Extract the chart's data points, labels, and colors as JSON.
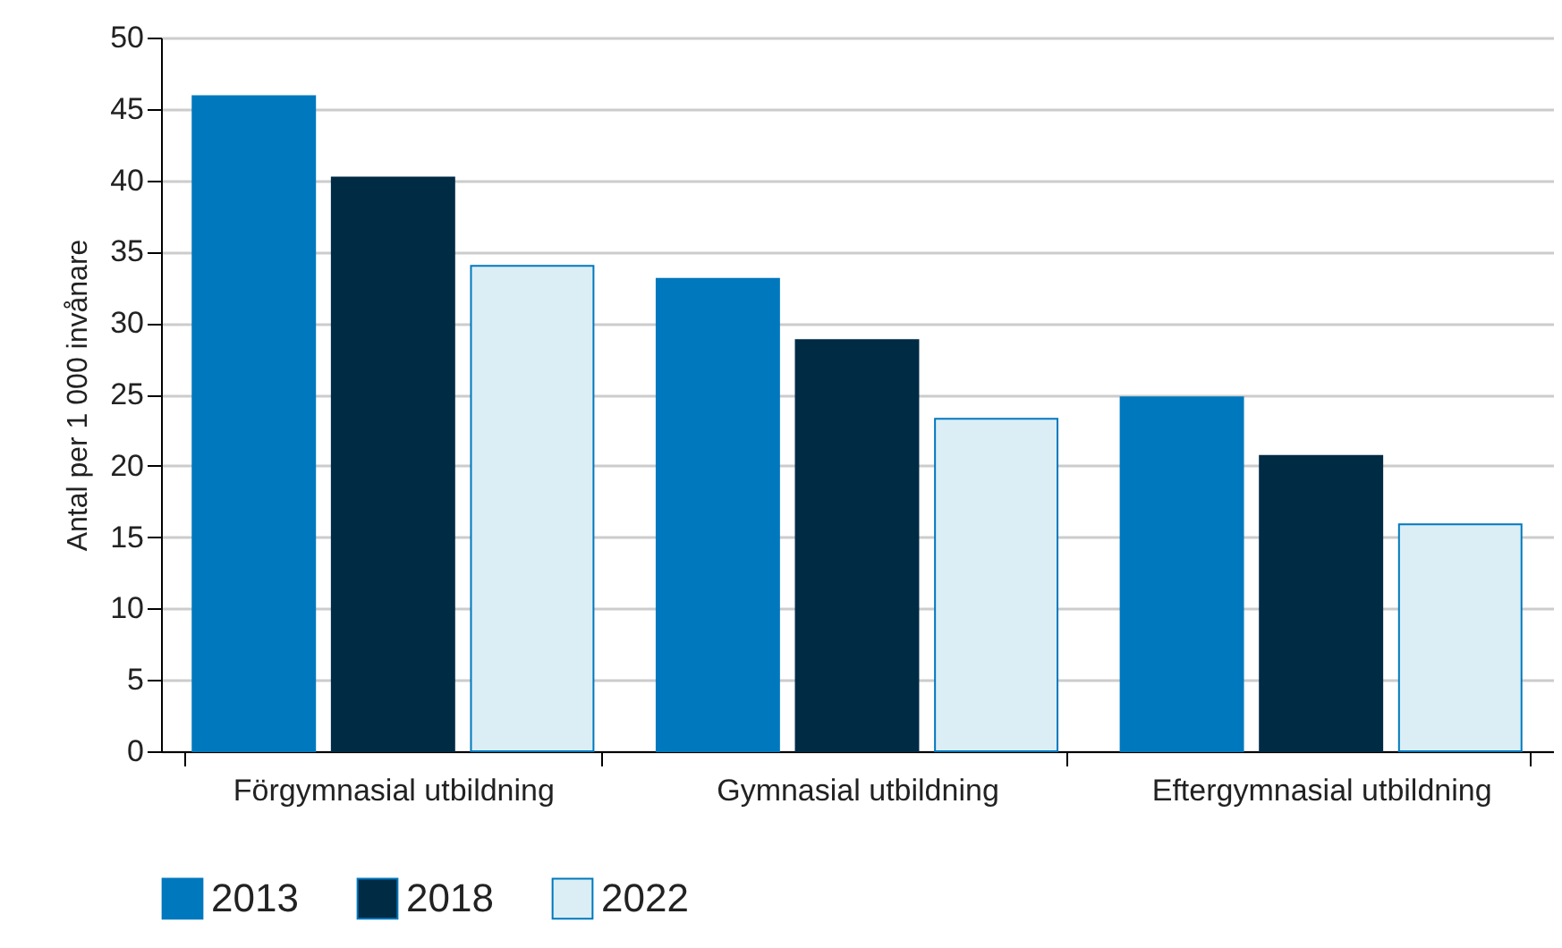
{
  "chart_data": {
    "type": "bar",
    "ylabel": "Antal per 1 000 invånare",
    "categories": [
      "Förgymnasial utbildning",
      "Gymnasial utbildning",
      "Eftergymnasial utbildning"
    ],
    "series": [
      {
        "name": "2013",
        "color": "#0078be",
        "values": [
          45.9,
          33.1,
          24.8
        ]
      },
      {
        "name": "2018",
        "color": "#002b45",
        "values": [
          40.2,
          28.8,
          20.7
        ]
      },
      {
        "name": "2022",
        "color": "#dbeef6",
        "values": [
          34.0,
          23.3,
          15.9
        ]
      }
    ],
    "ylim": [
      0,
      50
    ],
    "yticks": [
      0,
      5,
      10,
      15,
      20,
      25,
      30,
      35,
      40,
      45,
      50
    ],
    "grid": "y",
    "legend": "bottom"
  }
}
